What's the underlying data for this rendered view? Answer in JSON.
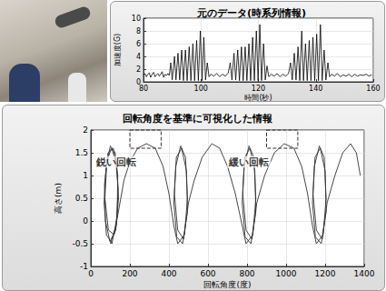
{
  "chart_data": [
    {
      "type": "line",
      "title": "元のデータ(時系列情報)",
      "x_label": "時間(秒)",
      "y_label": "加速度(G)",
      "x": [
        80,
        80.5,
        81,
        81.5,
        82,
        82.5,
        83,
        83.5,
        84,
        84.5,
        85,
        85.5,
        86,
        86.5,
        87,
        87.5,
        88,
        88.5,
        89,
        89.5,
        90,
        90.8,
        91.3,
        92,
        92.6,
        93.3,
        93.9,
        94.6,
        95.2,
        95.9,
        96.5,
        97.2,
        97.8,
        98.5,
        99.1,
        99.8,
        100.4,
        101,
        101.6,
        102.2,
        102.8,
        103.5,
        104.5,
        105.5,
        106.5,
        107.5,
        108.5,
        109.5,
        110.2,
        110.8,
        111.5,
        112.1,
        112.8,
        113.4,
        114.1,
        114.7,
        115.4,
        116,
        116.7,
        117.3,
        118,
        118.6,
        119.3,
        119.9,
        120.5,
        121.1,
        121.8,
        122.4,
        123,
        123.6,
        124.5,
        125.5,
        126.5,
        127.5,
        128.5,
        129.5,
        130.5,
        131.2,
        131.8,
        132.5,
        133.1,
        133.8,
        134.4,
        135.1,
        135.7,
        136.4,
        137,
        137.7,
        138.3,
        139,
        139.6,
        140.3,
        140.9,
        141.6,
        142.2,
        142.9,
        143.5,
        144.2,
        144.8,
        145.5,
        146.5,
        147.5,
        148.5,
        149.5,
        150.5,
        151.5,
        152.5,
        153.5,
        154.5,
        155.5,
        156.5,
        157.5,
        158.5,
        159.5
      ],
      "values": [
        1,
        1.3,
        0.8,
        1.2,
        1.4,
        0.7,
        1.2,
        1.5,
        0.8,
        1.1,
        1.3,
        0.9,
        1.2,
        1.6,
        0.7,
        1.2,
        1,
        1.3,
        1,
        3,
        0.3,
        4,
        0.3,
        4.5,
        0.3,
        5,
        0.2,
        5,
        0.2,
        5.5,
        0.2,
        6,
        0.2,
        6.5,
        0.2,
        8,
        0.2,
        7,
        0.3,
        3,
        0.8,
        1.2,
        0.9,
        1.3,
        0.8,
        1.2,
        0.9,
        1.4,
        3,
        0.3,
        4.5,
        0.3,
        5,
        0.2,
        5.5,
        0.2,
        5.5,
        0.2,
        6,
        0.2,
        7,
        0.2,
        8,
        0.2,
        9,
        0.2,
        6,
        0.3,
        2.5,
        0.8,
        1.2,
        0.9,
        1.3,
        0.8,
        1.2,
        0.9,
        1.3,
        3,
        0.3,
        4.5,
        0.3,
        5.5,
        0.2,
        8,
        0.2,
        6,
        0.2,
        6.5,
        0.2,
        7,
        0.2,
        7.5,
        0.2,
        9,
        0.2,
        5,
        0.3,
        3,
        0.8,
        1.2,
        0.9,
        1.3,
        0.8,
        1.1,
        0.9,
        1.2,
        0.8,
        1.2,
        0.9,
        1.1,
        1,
        1.2,
        0.9,
        1.1
      ],
      "color": "#000000",
      "xlim": [
        80,
        160
      ],
      "xticks": [
        80,
        100,
        120,
        140,
        160
      ],
      "ylim": [
        0,
        10
      ],
      "yticks": [
        0,
        2,
        4,
        6,
        8,
        10
      ],
      "grid": true
    },
    {
      "type": "line",
      "title": "回転角度を基準に可視化した情報",
      "x_label": "回転角度(度)",
      "y_label": "高さ(m)",
      "x": [
        100,
        130,
        140,
        125,
        100,
        78,
        68,
        80,
        108,
        135,
        138,
        115,
        88,
        70,
        75,
        98,
        128,
        142,
        132,
        105,
        82,
        72,
        90,
        120,
        145,
        170,
        200,
        240,
        285,
        330,
        370,
        400,
        425,
        445,
        480,
        495,
        485,
        460,
        435,
        425,
        440,
        470,
        495,
        490,
        465,
        438,
        428,
        445,
        475,
        500,
        530,
        570,
        620,
        660,
        700,
        740,
        775,
        795,
        830,
        845,
        835,
        810,
        785,
        775,
        790,
        820,
        845,
        840,
        815,
        788,
        778,
        795,
        825,
        850,
        890,
        940,
        990,
        1040,
        1080,
        1110,
        1135,
        1155,
        1190,
        1205,
        1195,
        1170,
        1145,
        1135,
        1150,
        1180,
        1205,
        1200,
        1175,
        1148,
        1138,
        1155,
        1185,
        1210,
        1250,
        1290,
        1330,
        1360,
        1380
      ],
      "values": [
        -0.5,
        -0.1,
        0.7,
        1.5,
        1.65,
        1.2,
        0.4,
        -0.3,
        -0.5,
        0.1,
        1.0,
        1.6,
        1.5,
        0.8,
        0,
        -0.45,
        -0.2,
        0.5,
        1.3,
        1.6,
        1.3,
        0.5,
        -0.2,
        -0.3,
        0.3,
        0.9,
        1.3,
        1.6,
        1.7,
        1.6,
        1.2,
        0.6,
        -0.1,
        -0.5,
        -0.3,
        0.5,
        1.4,
        1.65,
        1.2,
        0.4,
        -0.35,
        -0.5,
        0.2,
        1.1,
        1.6,
        1.4,
        0.6,
        -0.2,
        -0.4,
        0.4,
        0.9,
        1.4,
        1.7,
        1.6,
        1.2,
        0.6,
        -0.1,
        -0.5,
        -0.3,
        0.5,
        1.4,
        1.65,
        1.2,
        0.4,
        -0.35,
        -0.5,
        0.2,
        1.1,
        1.6,
        1.4,
        0.6,
        -0.2,
        -0.4,
        0.4,
        1.0,
        1.5,
        1.7,
        1.6,
        1.2,
        0.6,
        -0.1,
        -0.5,
        -0.3,
        0.5,
        1.4,
        1.65,
        1.2,
        0.4,
        -0.35,
        -0.5,
        0.2,
        1.1,
        1.6,
        1.4,
        0.6,
        -0.2,
        -0.4,
        0.4,
        1.0,
        1.5,
        1.7,
        1.5,
        1.0
      ],
      "color": "#333333",
      "xlim": [
        0,
        1400
      ],
      "xticks": [
        0,
        200,
        400,
        600,
        800,
        1000,
        1200,
        1400
      ],
      "ylim": [
        -1,
        2
      ],
      "yticks": [
        -1,
        -0.5,
        0,
        0.5,
        1,
        1.5,
        2
      ],
      "grid": true,
      "annotations": [
        {
          "text": "鋭い回転",
          "x": 130,
          "y": 1.3
        },
        {
          "text": "緩い回転",
          "x": 810,
          "y": 1.3
        }
      ],
      "highlight_regions": [
        {
          "x": [
            200,
            360
          ],
          "y": [
            1.6,
            2
          ]
        },
        {
          "x": [
            900,
            1060
          ],
          "y": [
            1.6,
            2
          ]
        }
      ]
    }
  ]
}
